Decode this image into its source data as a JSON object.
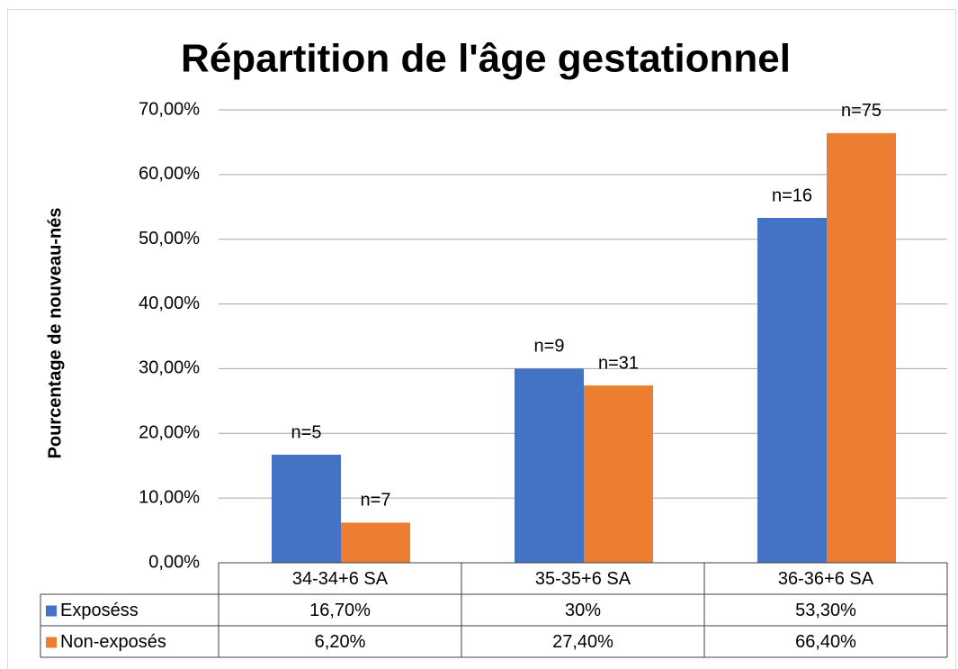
{
  "chart_data": {
    "type": "bar",
    "title": "Répartition  de l'âge gestationnel",
    "y_label": "Pourcentage de nouveau-nés",
    "categories": [
      "34-34+6 SA",
      "35-35+6 SA",
      "36-36+6 SA"
    ],
    "series": [
      {
        "name": "Exposéss",
        "color": "#4472c4",
        "values": [
          16.7,
          30,
          53.3
        ],
        "value_labels": [
          "16,70%",
          "30%",
          "53,30%"
        ],
        "annotations": [
          "n=5",
          "n=9",
          "n=16"
        ]
      },
      {
        "name": "Non-exposés",
        "color": "#ed7d31",
        "values": [
          6.2,
          27.4,
          66.4
        ],
        "value_labels": [
          "6,20%",
          "27,40%",
          "66,40%"
        ],
        "annotations": [
          "n=7",
          "n=31",
          "n=75"
        ]
      }
    ],
    "ylim": [
      0,
      70
    ],
    "yticks": [
      {
        "value": 0,
        "label": "0,00%"
      },
      {
        "value": 10,
        "label": "10,00%"
      },
      {
        "value": 20,
        "label": "20,00%"
      },
      {
        "value": 30,
        "label": "30,00%"
      },
      {
        "value": 40,
        "label": "40,00%"
      },
      {
        "value": 50,
        "label": "50,00%"
      },
      {
        "value": 60,
        "label": "60,00%"
      },
      {
        "value": 70,
        "label": "70,00%"
      }
    ],
    "grid": true
  }
}
